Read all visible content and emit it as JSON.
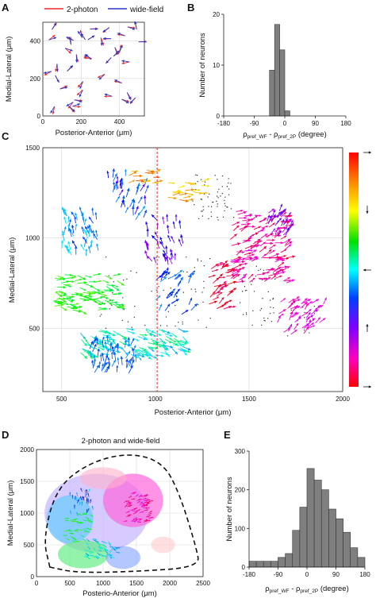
{
  "panels": {
    "a": {
      "letter": "A"
    },
    "b": {
      "letter": "B"
    },
    "c": {
      "letter": "C"
    },
    "d": {
      "letter": "D"
    },
    "e": {
      "letter": "E"
    }
  },
  "colors": {
    "two_photon": "#e8262a",
    "wide_field": "#2a36c8",
    "bar": "#7f7f7f",
    "grid": "#d9d9d9",
    "cmap_top": "#ff0000",
    "cmap_bottom": "#ff0000"
  },
  "chart_data": [
    {
      "id": "A",
      "type": "scatter",
      "description_free": true,
      "legend": [
        "2-photon",
        "wide-field"
      ],
      "xlabel": "Posterior-Anterior (μm)",
      "ylabel": "Medial-Lateral (μm)",
      "xlim": [
        0,
        530
      ],
      "ylim": [
        0,
        500
      ],
      "xticks": [
        0,
        200,
        400
      ],
      "yticks": [
        0,
        200,
        400
      ],
      "grid": true
    },
    {
      "id": "B",
      "type": "bar",
      "xlabel_main": "ρ",
      "xlabel_sub1": "pref_WF",
      "xlabel_mid": " - ρ",
      "xlabel_sub2": "pref_2P",
      "xlabel_unit": " (degree)",
      "ylabel": "Number of neurons",
      "xlim": [
        -180,
        180
      ],
      "ylim": [
        0,
        20
      ],
      "xticks": [
        -180,
        -90,
        0,
        90,
        180
      ],
      "yticks": [
        0,
        10,
        20
      ],
      "bin_edges": [
        -45,
        -30,
        -15,
        0,
        15,
        30,
        45
      ],
      "values": [
        9,
        18,
        13,
        1,
        0,
        0
      ]
    },
    {
      "id": "C",
      "type": "scatter",
      "xlabel": "Posterior-Anterior (μm)",
      "ylabel": "Medial-Lateral (μm)",
      "xlim": [
        400,
        2000
      ],
      "ylim": [
        150,
        1500
      ],
      "xticks": [
        500,
        1000,
        1500,
        2000
      ],
      "yticks": [
        500,
        1000,
        1500
      ],
      "dashed_line_x": 1010,
      "grid": true,
      "colorbar": "hue (magenta–red–orange–yellow–green–cyan–blue–magenta–red)"
    },
    {
      "id": "D",
      "type": "scatter",
      "title": "2-photon and wide-field",
      "xlabel": "Posterio-Anterior (μm)",
      "ylabel": "Medial-Lateral (μm)",
      "xlim": [
        0,
        2500
      ],
      "ylim": [
        0,
        2000
      ],
      "xticks": [
        0,
        500,
        1000,
        1500,
        2000,
        2500
      ],
      "yticks": [
        0,
        500,
        1000,
        1500,
        2000
      ],
      "grid": true
    },
    {
      "id": "E",
      "type": "bar",
      "xlabel_main": "ρ",
      "xlabel_sub1": "pref_WF",
      "xlabel_mid": " - ρ",
      "xlabel_sub2": "pref_2P",
      "xlabel_unit": " (degree)",
      "ylabel": "Number of neurons",
      "xlim": [
        -180,
        180
      ],
      "ylim": [
        0,
        300
      ],
      "xticks": [
        -180,
        -90,
        0,
        90,
        180
      ],
      "yticks": [
        0,
        100,
        200,
        300
      ],
      "bin_edges": [
        -180,
        -157.5,
        -135,
        -112.5,
        -90,
        -67.5,
        -45,
        -22.5,
        0,
        22.5,
        45,
        67.5,
        90,
        112.5,
        135,
        157.5,
        180
      ],
      "values": [
        15,
        15,
        15,
        15,
        25,
        35,
        95,
        155,
        255,
        225,
        200,
        150,
        125,
        90,
        50,
        25
      ]
    }
  ]
}
